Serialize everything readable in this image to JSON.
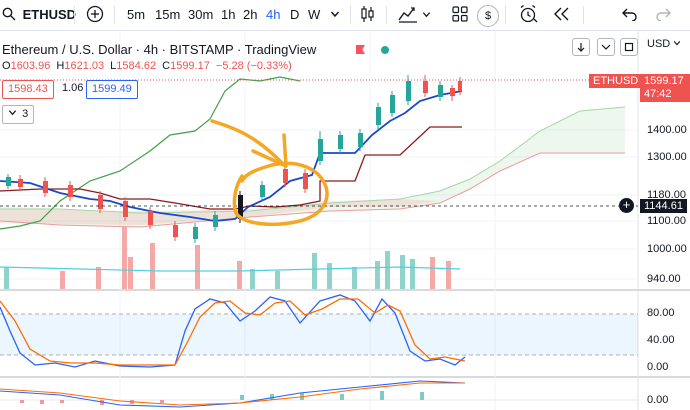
{
  "toolbar": {
    "symbol": "ETHUSD",
    "intervals": [
      "5m",
      "15m",
      "30m",
      "1h",
      "2h",
      "4h",
      "D",
      "W"
    ],
    "active_interval": "4h",
    "compare_icon": "plus-circle-icon",
    "dropdown_icon": "chevron-down-icon",
    "chart_type_icon": "candlestick-icon",
    "indicators_icon": "indicators-icon",
    "layout_icon": "grid-layout-icon",
    "currency_badge": "$",
    "alert_icon": "alarm-clock-icon",
    "replay_icon": "replay-icon",
    "undo_icon": "undo-icon",
    "redo_icon": "redo-icon"
  },
  "legend": {
    "title": "Ethereum / U.S. Dollar · 4h · BITSTAMP · TradingView",
    "o_label": "O",
    "o": "1603.96",
    "h_label": "H",
    "h": "1621.03",
    "l_label": "L",
    "l": "1584.62",
    "c_label": "C",
    "c": "1599.17",
    "change": "−5.28 (−0.33%)",
    "bid": "1598.43",
    "spread": "1.06",
    "ask": "1599.49",
    "indicators_count": "3"
  },
  "right_panel": {
    "currency": "USD",
    "symbol_tag": "ETHUSD",
    "price_tag": "1599.17",
    "countdown": "47:42",
    "crosshair_price": "1144.61",
    "price_axis": [
      "1400.00",
      "1300.00",
      "1180.00",
      "1100.00",
      "1000.00",
      "940.00"
    ],
    "stoch_axis": [
      "80.00",
      "40.00",
      "0.00"
    ],
    "macd_axis": [
      "0.00"
    ]
  },
  "colors": {
    "up": "#26a69a",
    "down": "#ef5350",
    "tenkan": "#1848cc",
    "kijun": "#8b1a1a",
    "chikou": "#43a047",
    "annotation": "#f5a623",
    "stoch_k": "#2962ff",
    "stoch_d": "#ff6d00"
  }
}
